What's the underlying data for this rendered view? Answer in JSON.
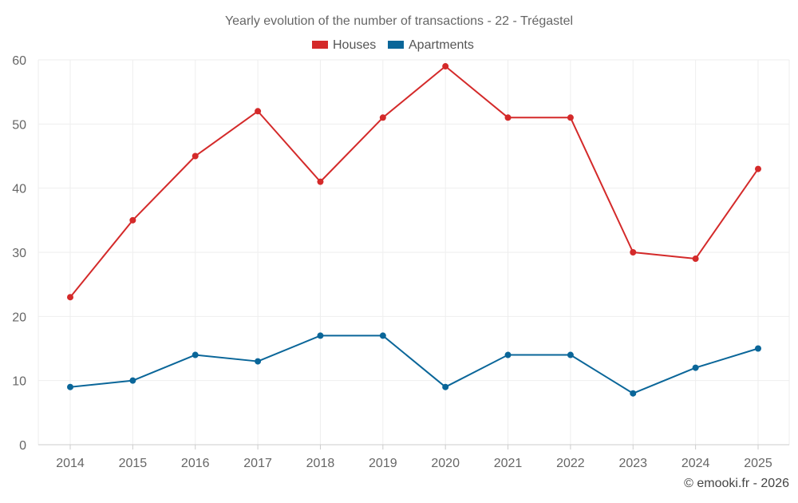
{
  "chart_data": {
    "type": "line",
    "title": "Yearly evolution of the number of transactions - 22 - Trégastel",
    "categories": [
      "2014",
      "2015",
      "2016",
      "2017",
      "2018",
      "2019",
      "2020",
      "2021",
      "2022",
      "2023",
      "2024",
      "2025"
    ],
    "series": [
      {
        "name": "Houses",
        "color": "#d42a2a",
        "values": [
          23,
          35,
          45,
          52,
          41,
          51,
          59,
          51,
          51,
          30,
          29,
          43
        ]
      },
      {
        "name": "Apartments",
        "color": "#0a6699",
        "values": [
          9,
          10,
          14,
          13,
          17,
          17,
          9,
          14,
          14,
          8,
          12,
          15
        ]
      }
    ],
    "ylim": [
      0,
      60
    ],
    "yticks": [
      0,
      10,
      20,
      30,
      40,
      50,
      60
    ],
    "xlabel": "",
    "ylabel": "",
    "grid": true,
    "legend_position": "top-center"
  },
  "credit": "© emooki.fr - 2026"
}
